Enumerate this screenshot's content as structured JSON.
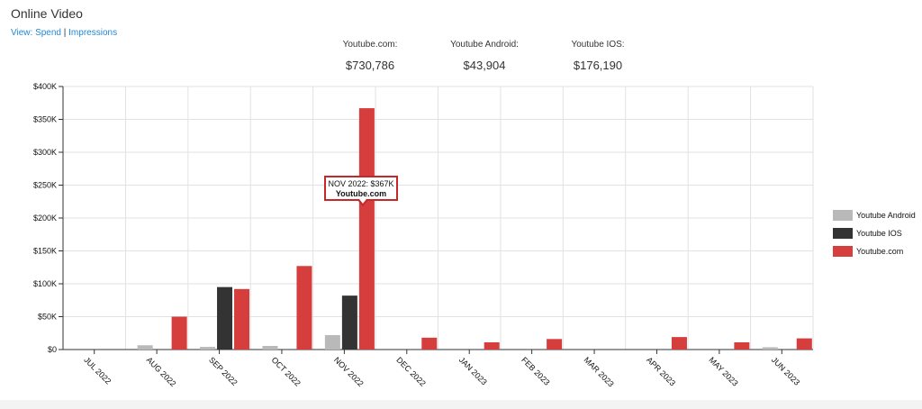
{
  "page": {
    "title": "Online Video",
    "view_label": "View:",
    "view_spend": "Spend",
    "view_sep": "|",
    "view_impressions": "Impressions"
  },
  "summary": [
    {
      "label": "Youtube.com:",
      "value": "$730,786"
    },
    {
      "label": "Youtube Android:",
      "value": "$43,904"
    },
    {
      "label": "Youtube IOS:",
      "value": "$176,190"
    }
  ],
  "tooltip": {
    "line1": "NOV 2022: $367K",
    "line2": "Youtube.com"
  },
  "colors": {
    "android": "#b9b9b9",
    "ios": "#333333",
    "youtube": "#d63d3d",
    "link": "#1e88d6"
  },
  "chart_data": {
    "type": "bar",
    "categories": [
      "JUL 2022",
      "AUG 2022",
      "SEP 2022",
      "OCT 2022",
      "NOV 2022",
      "DEC 2022",
      "JAN 2023",
      "FEB 2023",
      "MAR 2023",
      "APR 2023",
      "MAY 2023",
      "JUN 2023"
    ],
    "series": [
      {
        "name": "Youtube Android",
        "color": "#b9b9b9",
        "values": [
          0,
          6500,
          4000,
          5500,
          22000,
          0,
          0,
          0,
          0,
          0,
          0,
          3500
        ]
      },
      {
        "name": "Youtube IOS",
        "color": "#333333",
        "values": [
          0,
          0,
          95000,
          0,
          82000,
          0,
          0,
          0,
          0,
          0,
          0,
          0
        ]
      },
      {
        "name": "Youtube.com",
        "color": "#d63d3d",
        "values": [
          0,
          50000,
          92000,
          127000,
          367000,
          18000,
          11000,
          16000,
          0,
          19000,
          11000,
          17000
        ]
      }
    ],
    "y_ticks": [
      "$0",
      "$50K",
      "$100K",
      "$150K",
      "$200K",
      "$250K",
      "$300K",
      "$350K",
      "$400K"
    ],
    "ylim": [
      0,
      400000
    ],
    "grid": true,
    "legend": "right"
  }
}
